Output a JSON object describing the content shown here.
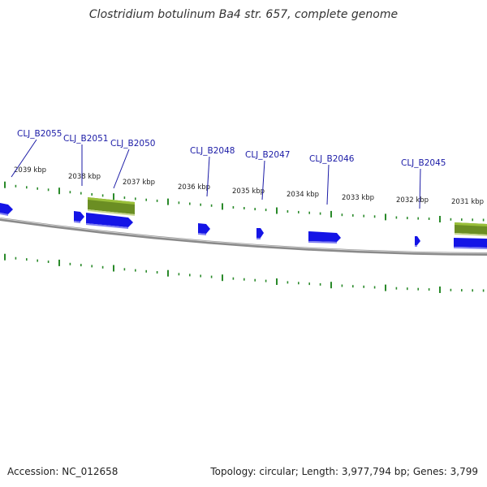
{
  "header": {
    "title": "Clostridium botulinum Ba4 str. 657, complete genome"
  },
  "footer": {
    "accession": "Accession: NC_012658",
    "summary": "Topology: circular; Length: 3,977,794 bp; Genes: 3,799"
  },
  "colors": {
    "backbone": "#8a8a8a",
    "gene_forward": "#1414e6",
    "gene_shadow": "#8080f0",
    "feature_green": "#6b8e23",
    "tick": "#2a8a2a",
    "label": "#1a1aa6"
  },
  "kbp_labels": [
    "2039 kbp",
    "2038 kbp",
    "2037 kbp",
    "2036 kbp",
    "2035 kbp",
    "2034 kbp",
    "2033 kbp",
    "2032 kbp",
    "2031 kbp"
  ],
  "gene_labels": [
    "CLJ_B2055",
    "CLJ_B2051",
    "CLJ_B2050",
    "CLJ_B2048",
    "CLJ_B2047",
    "CLJ_B2046",
    "CLJ_B2045"
  ]
}
